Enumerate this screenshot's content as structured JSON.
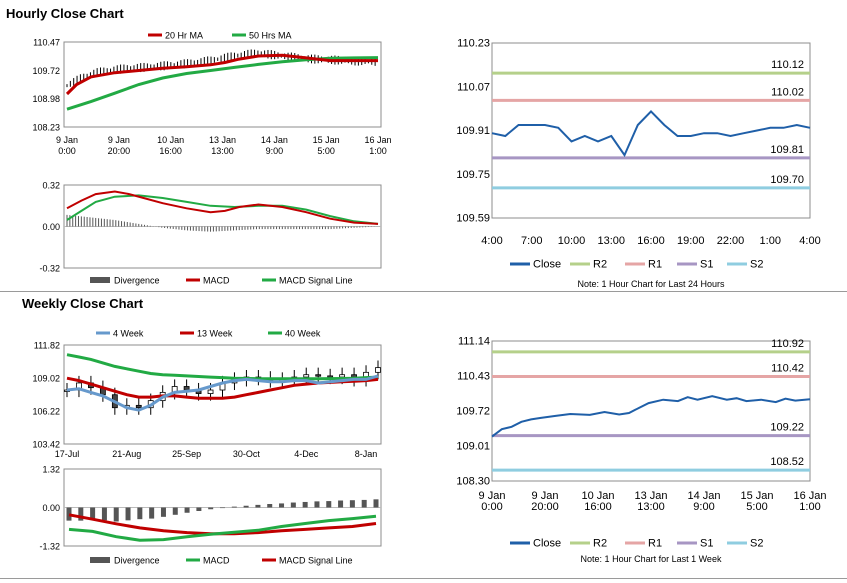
{
  "titles": {
    "hourly": "Hourly Close Chart",
    "weekly": "Weekly Close Chart"
  },
  "chart_data": [
    {
      "id": "hourly_price",
      "type": "line",
      "title": "Hourly Close Chart",
      "legend": [
        "20 Hr MA",
        "50 Hrs MA"
      ],
      "colors": {
        "ma20": "#c00000",
        "ma50": "#22aa44",
        "candles": "#000000"
      },
      "ylim": [
        108.23,
        110.47
      ],
      "yticks": [
        "110.47",
        "109.72",
        "108.98",
        "108.23"
      ],
      "xticks": [
        [
          "9 Jan",
          "0:00"
        ],
        [
          "9 Jan",
          "20:00"
        ],
        [
          "10 Jan",
          "16:00"
        ],
        [
          "13 Jan",
          "13:00"
        ],
        [
          "14 Jan",
          "9:00"
        ],
        [
          "15 Jan",
          "5:00"
        ],
        [
          "16 Jan",
          "1:00"
        ]
      ],
      "series": [
        {
          "name": "Close",
          "x": [
            0,
            0.3,
            0.6,
            1,
            1.3,
            1.6,
            2,
            2.5,
            3,
            3.5,
            4,
            4.5,
            5,
            5.5,
            6,
            6.5
          ],
          "values": [
            109.32,
            109.52,
            109.66,
            109.74,
            109.78,
            109.8,
            109.84,
            109.9,
            109.98,
            110.1,
            110.18,
            110.1,
            110.03,
            110.0,
            109.97,
            109.95
          ]
        },
        {
          "name": "20 Hr MA",
          "x": [
            0,
            0.2,
            0.5,
            1,
            1.5,
            2,
            2.5,
            3,
            3.3,
            3.6,
            4,
            4.5,
            5,
            5.5,
            6,
            6.5
          ],
          "values": [
            109.1,
            109.35,
            109.55,
            109.66,
            109.72,
            109.78,
            109.82,
            109.87,
            109.93,
            110.02,
            110.1,
            110.12,
            110.05,
            109.98,
            109.98,
            109.98
          ]
        },
        {
          "name": "50 Hrs MA",
          "x": [
            0,
            0.5,
            1,
            1.5,
            2,
            2.5,
            3,
            3.5,
            4,
            4.5,
            5,
            5.5,
            6,
            6.5
          ],
          "values": [
            108.7,
            108.9,
            109.12,
            109.35,
            109.52,
            109.64,
            109.72,
            109.8,
            109.88,
            109.95,
            110.0,
            110.04,
            110.05,
            110.06
          ]
        }
      ]
    },
    {
      "id": "hourly_macd",
      "type": "bar",
      "legend": [
        "Divergence",
        "MACD",
        "MACD Signal Line"
      ],
      "colors": {
        "divergence": "#555555",
        "macd": "#c00000",
        "signal": "#22aa44"
      },
      "ylim": [
        -0.32,
        0.32
      ],
      "yticks": [
        "0.32",
        "0.00",
        "-0.32"
      ],
      "series": [
        {
          "name": "MACD",
          "x": [
            0,
            0.3,
            0.6,
            1,
            1.3,
            1.6,
            2,
            2.5,
            3,
            3.3,
            3.6,
            4,
            4.5,
            5,
            5.5,
            6,
            6.5
          ],
          "values": [
            0.14,
            0.2,
            0.25,
            0.27,
            0.25,
            0.22,
            0.18,
            0.14,
            0.11,
            0.12,
            0.15,
            0.17,
            0.15,
            0.11,
            0.06,
            0.03,
            0.02
          ]
        },
        {
          "name": "MACD Signal Line",
          "x": [
            0,
            0.3,
            0.6,
            1,
            1.5,
            2,
            2.5,
            3,
            3.5,
            4,
            4.5,
            5,
            5.5,
            6,
            6.5
          ],
          "values": [
            0.05,
            0.12,
            0.19,
            0.23,
            0.24,
            0.22,
            0.19,
            0.16,
            0.15,
            0.16,
            0.16,
            0.13,
            0.08,
            0.04,
            0.02
          ]
        },
        {
          "name": "Divergence",
          "x": [
            0,
            0.5,
            1,
            1.5,
            2,
            2.5,
            3,
            3.5,
            4,
            4.5,
            5,
            5.5,
            6,
            6.5
          ],
          "values": [
            0.09,
            0.07,
            0.05,
            0.02,
            -0.01,
            -0.03,
            -0.04,
            -0.03,
            -0.02,
            -0.02,
            -0.02,
            -0.02,
            -0.01,
            0.0
          ]
        }
      ]
    },
    {
      "id": "hourly_24h",
      "type": "line",
      "ylim": [
        109.59,
        110.23
      ],
      "yticks": [
        "110.23",
        "110.07",
        "109.91",
        "109.75",
        "109.59"
      ],
      "xticks": [
        "4:00",
        "7:00",
        "10:00",
        "13:00",
        "16:00",
        "19:00",
        "22:00",
        "1:00",
        "4:00"
      ],
      "levels": [
        {
          "name": "R2",
          "value": 110.12,
          "label": "110.12",
          "color": "#b5d08a"
        },
        {
          "name": "R1",
          "value": 110.02,
          "label": "110.02",
          "color": "#e5a5a5"
        },
        {
          "name": "S1",
          "value": 109.81,
          "label": "109.81",
          "color": "#a796c3"
        },
        {
          "name": "S2",
          "value": 109.7,
          "label": "109.70",
          "color": "#8fcde0"
        }
      ],
      "series": [
        {
          "name": "Close",
          "color": "#1f5fa8",
          "x": [
            0,
            1,
            2,
            3,
            4,
            5,
            6,
            7,
            8,
            9,
            10,
            11,
            12,
            13,
            14,
            15,
            16,
            17,
            18,
            19,
            20,
            21,
            22,
            23,
            24
          ],
          "values": [
            109.9,
            109.89,
            109.93,
            109.93,
            109.93,
            109.92,
            109.87,
            109.89,
            109.87,
            109.89,
            109.82,
            109.93,
            109.98,
            109.93,
            109.89,
            109.89,
            109.9,
            109.9,
            109.89,
            109.9,
            109.91,
            109.92,
            109.92,
            109.93,
            109.92
          ]
        }
      ],
      "legend": [
        "Close",
        "R2",
        "R1",
        "S1",
        "S2"
      ],
      "note": "Note: 1 Hour Chart for Last 24 Hours"
    },
    {
      "id": "weekly_price",
      "type": "line",
      "title": "Weekly Close Chart",
      "legend": [
        "4 Week",
        "13 Week",
        "40 Week"
      ],
      "colors": {
        "w4": "#6699cc",
        "w13": "#c00000",
        "w40": "#22aa44",
        "candles": "#000000"
      },
      "ylim": [
        103.42,
        111.82
      ],
      "yticks": [
        "111.82",
        "109.02",
        "106.22",
        "103.42"
      ],
      "xticks": [
        "17-Jul",
        "21-Aug",
        "25-Sep",
        "30-Oct",
        "4-Dec",
        "8-Jan"
      ],
      "series": [
        {
          "name": "40 Week",
          "x": [
            0,
            1,
            2,
            3,
            4,
            5,
            6,
            7,
            8,
            9,
            10,
            11,
            12,
            13,
            14,
            15,
            16,
            17,
            18,
            19,
            20,
            21,
            22,
            23,
            24,
            25,
            26
          ],
          "values": [
            111.0,
            110.8,
            110.6,
            110.3,
            110.0,
            109.8,
            109.6,
            109.4,
            109.3,
            109.25,
            109.2,
            109.15,
            109.1,
            109.05,
            109.0,
            108.98,
            108.96,
            108.95,
            108.95,
            108.95,
            108.95,
            108.96,
            108.97,
            108.98,
            109.0,
            109.05,
            109.1
          ]
        },
        {
          "name": "13 Week",
          "x": [
            0,
            1,
            2,
            3,
            4,
            5,
            6,
            7,
            8,
            9,
            10,
            11,
            12,
            13,
            14,
            15,
            16,
            17,
            18,
            19,
            20,
            21,
            22,
            23,
            24,
            25,
            26
          ],
          "values": [
            109.0,
            108.8,
            108.5,
            108.2,
            107.9,
            107.6,
            107.4,
            107.4,
            107.5,
            107.5,
            107.4,
            107.3,
            107.3,
            107.3,
            107.4,
            107.6,
            107.8,
            108.0,
            108.2,
            108.4,
            108.5,
            108.6,
            108.65,
            108.7,
            108.75,
            108.8,
            108.9
          ]
        },
        {
          "name": "4 Week",
          "x": [
            0,
            1,
            2,
            3,
            4,
            5,
            6,
            7,
            8,
            9,
            10,
            11,
            12,
            13,
            14,
            15,
            16,
            17,
            18,
            19,
            20,
            21,
            22,
            23,
            24,
            25,
            26
          ],
          "values": [
            108.0,
            108.1,
            107.8,
            107.5,
            107.0,
            106.5,
            106.3,
            106.7,
            107.4,
            107.8,
            107.9,
            108.0,
            108.3,
            108.6,
            108.8,
            108.9,
            108.8,
            108.7,
            108.7,
            108.8,
            108.8,
            108.6,
            108.7,
            108.8,
            108.9,
            108.9,
            109.2
          ]
        },
        {
          "name": "Close",
          "x": [
            0,
            1,
            2,
            3,
            4,
            5,
            6,
            7,
            8,
            9,
            10,
            11,
            12,
            13,
            14,
            15,
            16,
            17,
            18,
            19,
            20,
            21,
            22,
            23,
            24,
            25,
            26
          ],
          "values": [
            108.0,
            108.6,
            108.2,
            107.6,
            106.5,
            106.7,
            106.5,
            107.1,
            107.8,
            108.3,
            108.0,
            107.7,
            108.0,
            108.6,
            108.9,
            109.1,
            109.0,
            108.8,
            108.9,
            109.1,
            109.3,
            109.2,
            109.1,
            109.3,
            108.9,
            109.5,
            109.9
          ]
        }
      ]
    },
    {
      "id": "weekly_macd",
      "type": "bar",
      "legend": [
        "Divergence",
        "MACD",
        "MACD Signal Line"
      ],
      "colors": {
        "divergence": "#555555",
        "macd": "#22aa44",
        "signal": "#c00000"
      },
      "ylim": [
        -1.32,
        1.32
      ],
      "yticks": [
        "1.32",
        "0.00",
        "-1.32"
      ],
      "series": [
        {
          "name": "MACD",
          "x": [
            0,
            2,
            4,
            6,
            8,
            10,
            12,
            14,
            16,
            18,
            20,
            22,
            24,
            26
          ],
          "values": [
            -0.75,
            -0.82,
            -1.0,
            -1.12,
            -1.1,
            -1.0,
            -0.92,
            -0.85,
            -0.78,
            -0.65,
            -0.55,
            -0.45,
            -0.38,
            -0.3
          ]
        },
        {
          "name": "MACD Signal Line",
          "x": [
            0,
            2,
            4,
            6,
            8,
            10,
            12,
            14,
            16,
            18,
            20,
            22,
            24,
            26
          ],
          "values": [
            -0.25,
            -0.4,
            -0.56,
            -0.7,
            -0.8,
            -0.86,
            -0.9,
            -0.9,
            -0.86,
            -0.8,
            -0.75,
            -0.7,
            -0.65,
            -0.55
          ]
        },
        {
          "name": "Divergence",
          "x": [
            0,
            1,
            2,
            3,
            4,
            5,
            6,
            7,
            8,
            9,
            10,
            11,
            12,
            13,
            14,
            15,
            16,
            17,
            18,
            19,
            20,
            21,
            22,
            23,
            24,
            25,
            26
          ],
          "values": [
            -0.45,
            -0.45,
            -0.4,
            -0.44,
            -0.48,
            -0.44,
            -0.4,
            -0.38,
            -0.32,
            -0.25,
            -0.18,
            -0.12,
            -0.06,
            -0.02,
            0.03,
            0.06,
            0.09,
            0.12,
            0.14,
            0.17,
            0.19,
            0.21,
            0.22,
            0.24,
            0.25,
            0.26,
            0.28
          ]
        }
      ]
    },
    {
      "id": "weekly_hour",
      "type": "line",
      "ylim": [
        108.3,
        111.14
      ],
      "yticks": [
        "111.14",
        "110.43",
        "109.72",
        "109.01",
        "108.30"
      ],
      "xticks": [
        [
          "9 Jan",
          "0:00"
        ],
        [
          "9 Jan",
          "20:00"
        ],
        [
          "10 Jan",
          "16:00"
        ],
        [
          "13 Jan",
          "13:00"
        ],
        [
          "14 Jan",
          "9:00"
        ],
        [
          "15 Jan",
          "5:00"
        ],
        [
          "16 Jan",
          "1:00"
        ]
      ],
      "levels": [
        {
          "name": "R2",
          "value": 110.92,
          "label": "110.92",
          "color": "#b5d08a"
        },
        {
          "name": "R1",
          "value": 110.42,
          "label": "110.42",
          "color": "#e5a5a5"
        },
        {
          "name": "S1",
          "value": 109.22,
          "label": "109.22",
          "color": "#a796c3"
        },
        {
          "name": "S2",
          "value": 108.52,
          "label": "108.52",
          "color": "#8fcde0"
        }
      ],
      "series": [
        {
          "name": "Close",
          "color": "#1f5fa8",
          "x": [
            0,
            0.2,
            0.4,
            0.6,
            0.8,
            1,
            1.3,
            1.6,
            2,
            2.3,
            2.6,
            2.8,
            3,
            3.2,
            3.5,
            3.8,
            4,
            4.2,
            4.5,
            4.8,
            5,
            5.2,
            5.5,
            5.8,
            6,
            6.2,
            6.5
          ],
          "values": [
            109.2,
            109.35,
            109.4,
            109.5,
            109.55,
            109.58,
            109.62,
            109.66,
            109.64,
            109.7,
            109.65,
            109.68,
            109.78,
            109.88,
            109.95,
            109.92,
            110.0,
            109.95,
            110.02,
            109.95,
            109.98,
            109.92,
            109.95,
            109.9,
            109.97,
            109.93,
            109.96
          ]
        }
      ],
      "legend": [
        "Close",
        "R2",
        "R1",
        "S1",
        "S2"
      ],
      "note": "Note: 1 Hour Chart for Last 1 Week"
    }
  ]
}
